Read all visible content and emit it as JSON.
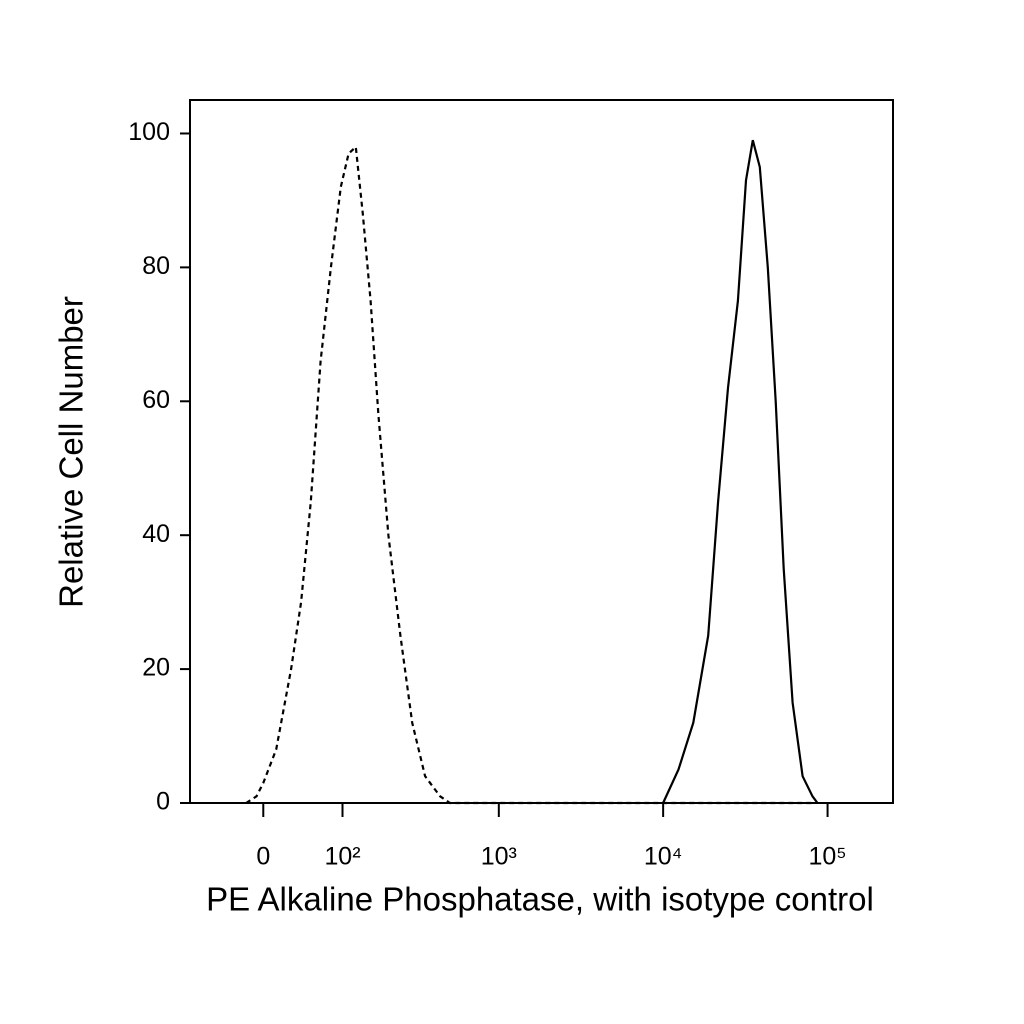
{
  "chart_data": {
    "type": "line",
    "x_label": "PE Alkaline Phosphatase, with isotype control",
    "y_label": "Relative Cell Number",
    "xscale": "biexponential",
    "xlim": [
      -90,
      250000
    ],
    "xticks": [
      0,
      {
        "value": 100,
        "label": "10²"
      },
      {
        "value": 1000,
        "label": "10³"
      },
      {
        "value": 10000,
        "label": "10⁴"
      },
      {
        "value": 100000,
        "label": "10⁵"
      }
    ],
    "ylim": [
      0,
      105
    ],
    "yticks": [
      0,
      20,
      40,
      60,
      80,
      100
    ],
    "grid": false,
    "series": [
      {
        "color": "#000000",
        "dash": true,
        "x": [
          -18,
          -7,
          0,
          13.5,
          29.5,
          41,
          53,
          66,
          81,
          97,
          111,
          125,
          140,
          158,
          178,
          207,
          247,
          293,
          353,
          437,
          502,
          30000,
          80000
        ],
        "values": [
          0,
          1,
          3,
          8,
          20,
          30,
          45,
          66,
          80,
          92,
          97,
          98,
          88,
          75,
          58,
          40,
          25,
          12,
          4,
          1,
          0,
          0,
          0
        ]
      },
      {
        "color": "#000000",
        "dash": false,
        "x": [
          10000,
          12400,
          15250,
          18800,
          21600,
          24800,
          28500,
          31900,
          35100,
          38700,
          43300,
          48400,
          54100,
          61300,
          70500,
          81000,
          86800
        ],
        "values": [
          0,
          5,
          12,
          25,
          45,
          62,
          75,
          93,
          99,
          95,
          80,
          60,
          35,
          15,
          4,
          1,
          0
        ]
      }
    ]
  }
}
